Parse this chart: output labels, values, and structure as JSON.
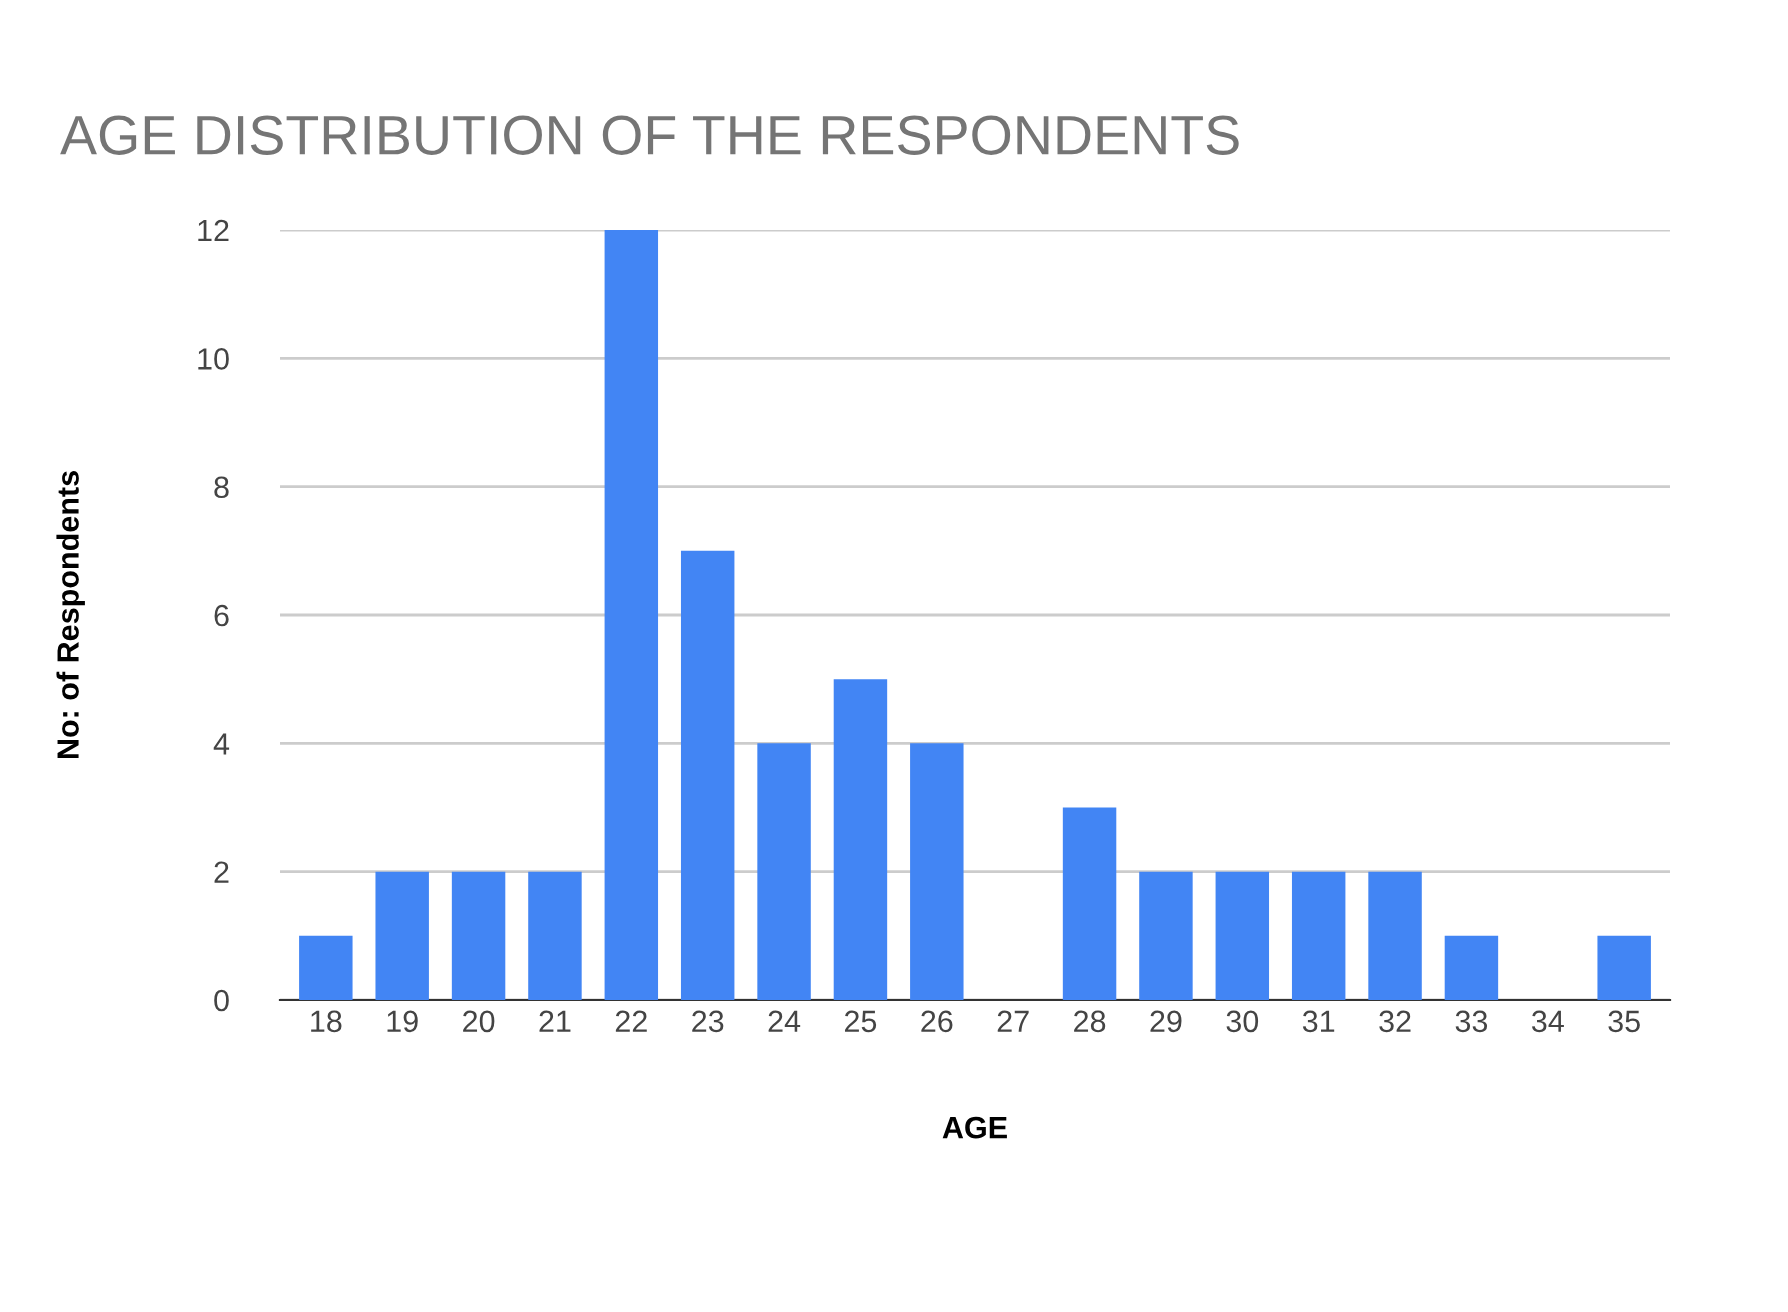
{
  "chart_data": {
    "type": "bar",
    "title": "AGE DISTRIBUTION OF THE RESPONDENTS",
    "xlabel": "AGE",
    "ylabel": "No: of Respondents",
    "categories": [
      "18",
      "19",
      "20",
      "21",
      "22",
      "23",
      "24",
      "25",
      "26",
      "27",
      "28",
      "29",
      "30",
      "31",
      "32",
      "33",
      "34",
      "35"
    ],
    "values": [
      1,
      2,
      2,
      2,
      12,
      7,
      4,
      5,
      4,
      0,
      3,
      2,
      2,
      2,
      2,
      1,
      0,
      1
    ],
    "color": "#4285f4",
    "ylim": [
      0,
      12
    ],
    "yticks": [
      0,
      2,
      4,
      6,
      8,
      10,
      12
    ],
    "grid": "y",
    "legend": false
  }
}
